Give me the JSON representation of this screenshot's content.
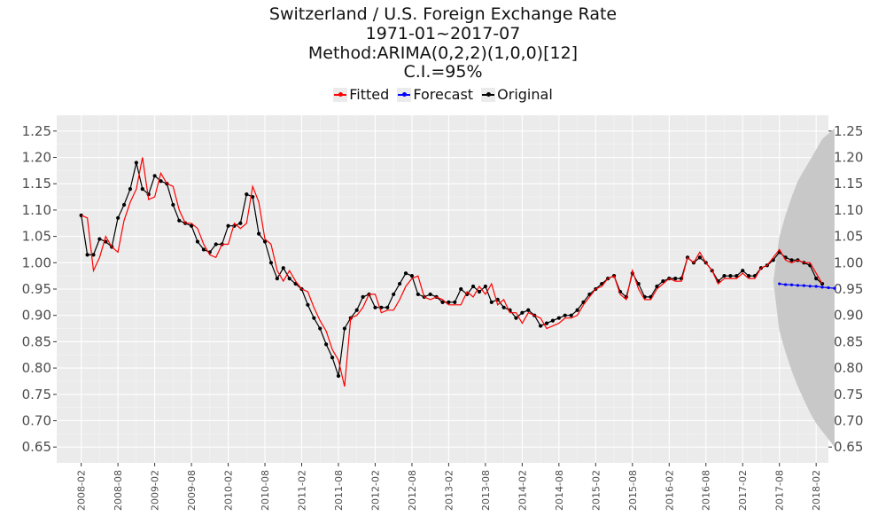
{
  "title": {
    "line1": "Switzerland / U.S. Foreign Exchange Rate",
    "line2": "1971-01~2017-07",
    "line3": "Method:ARIMA(0,2,2)(1,0,0)[12]",
    "line4": "C.I.=95%"
  },
  "legend": {
    "items": [
      {
        "label": "Fitted",
        "color": "#ff0000"
      },
      {
        "label": "Forecast",
        "color": "#0000ff"
      },
      {
        "label": "Original",
        "color": "#000000"
      }
    ]
  },
  "colors": {
    "panel": "#ebebeb",
    "grid_major": "#ffffff",
    "ci_band": "#c8c8c8",
    "fitted": "#ff0000",
    "forecast": "#0000ff",
    "original": "#000000"
  },
  "chart_data": {
    "type": "line",
    "ylim": [
      0.62,
      1.28
    ],
    "xlim": [
      "2007-10",
      "2018-04"
    ],
    "y_ticks": [
      0.65,
      0.7,
      0.75,
      0.8,
      0.85,
      0.9,
      0.95,
      1.0,
      1.05,
      1.1,
      1.15,
      1.2,
      1.25
    ],
    "y_tick_labels": [
      "0.65",
      "0.70",
      "0.75",
      "0.80",
      "0.85",
      "0.90",
      "0.95",
      "1.00",
      "1.05",
      "1.10",
      "1.15",
      "1.20",
      "1.25"
    ],
    "x_ticks": [
      "2008-02",
      "2008-08",
      "2009-02",
      "2009-08",
      "2010-02",
      "2010-08",
      "2011-02",
      "2011-08",
      "2012-02",
      "2012-08",
      "2013-02",
      "2013-08",
      "2014-02",
      "2014-08",
      "2015-02",
      "2015-08",
      "2016-02",
      "2016-08",
      "2017-02",
      "2017-08",
      "2018-02"
    ],
    "secondary_y_axis": true,
    "grid": true,
    "legend_position": "top",
    "start": "2008-02",
    "series": [
      {
        "name": "Original",
        "markers": true,
        "values": [
          1.09,
          1.015,
          1.015,
          1.045,
          1.04,
          1.03,
          1.085,
          1.11,
          1.14,
          1.19,
          1.14,
          1.13,
          1.165,
          1.155,
          1.15,
          1.11,
          1.08,
          1.075,
          1.07,
          1.04,
          1.025,
          1.02,
          1.035,
          1.035,
          1.07,
          1.07,
          1.075,
          1.13,
          1.125,
          1.055,
          1.04,
          1.0,
          0.97,
          0.99,
          0.97,
          0.96,
          0.95,
          0.92,
          0.895,
          0.875,
          0.845,
          0.82,
          0.785,
          0.875,
          0.895,
          0.91,
          0.935,
          0.94,
          0.915,
          0.915,
          0.915,
          0.94,
          0.96,
          0.98,
          0.975,
          0.94,
          0.935,
          0.94,
          0.935,
          0.925,
          0.925,
          0.925,
          0.95,
          0.94,
          0.955,
          0.945,
          0.955,
          0.925,
          0.93,
          0.915,
          0.91,
          0.895,
          0.905,
          0.91,
          0.9,
          0.88,
          0.885,
          0.89,
          0.895,
          0.9,
          0.9,
          0.91,
          0.925,
          0.94,
          0.95,
          0.96,
          0.97,
          0.975,
          0.945,
          0.935,
          0.98,
          0.96,
          0.935,
          0.935,
          0.955,
          0.965,
          0.97,
          0.97,
          0.97,
          1.01,
          1.0,
          1.01,
          1.0,
          0.985,
          0.965,
          0.975,
          0.975,
          0.975,
          0.985,
          0.975,
          0.975,
          0.99,
          0.995,
          1.005,
          1.02,
          1.01,
          1.005,
          1.005,
          1.0,
          0.995,
          0.97,
          0.96
        ]
      },
      {
        "name": "Fitted",
        "markers": false,
        "values": [
          1.09,
          1.085,
          0.985,
          1.01,
          1.05,
          1.03,
          1.02,
          1.08,
          1.115,
          1.14,
          1.2,
          1.12,
          1.125,
          1.17,
          1.15,
          1.145,
          1.1,
          1.075,
          1.075,
          1.065,
          1.035,
          1.015,
          1.01,
          1.035,
          1.035,
          1.075,
          1.065,
          1.075,
          1.145,
          1.115,
          1.045,
          1.035,
          0.985,
          0.965,
          0.985,
          0.965,
          0.95,
          0.945,
          0.915,
          0.89,
          0.87,
          0.835,
          0.815,
          0.765,
          0.895,
          0.9,
          0.915,
          0.94,
          0.94,
          0.905,
          0.91,
          0.91,
          0.93,
          0.955,
          0.97,
          0.975,
          0.935,
          0.93,
          0.935,
          0.93,
          0.92,
          0.92,
          0.92,
          0.945,
          0.935,
          0.955,
          0.94,
          0.96,
          0.92,
          0.93,
          0.905,
          0.905,
          0.885,
          0.905,
          0.9,
          0.895,
          0.875,
          0.88,
          0.885,
          0.895,
          0.895,
          0.9,
          0.92,
          0.935,
          0.95,
          0.955,
          0.97,
          0.975,
          0.94,
          0.93,
          0.985,
          0.95,
          0.93,
          0.93,
          0.95,
          0.96,
          0.97,
          0.965,
          0.965,
          1.01,
          1.0,
          1.02,
          1.0,
          0.985,
          0.96,
          0.97,
          0.97,
          0.97,
          0.98,
          0.97,
          0.97,
          0.99,
          0.995,
          1.01,
          1.025,
          1.005,
          1.0,
          1.005,
          1.0,
          1.0,
          0.98,
          0.96
        ]
      },
      {
        "name": "Forecast",
        "markers": true,
        "start": "2017-08",
        "values": [
          0.96,
          0.9585,
          0.958,
          0.957,
          0.9565,
          0.9555,
          0.955,
          0.9535,
          0.9525,
          0.9515
        ]
      }
    ],
    "confidence_interval": {
      "level": "95%",
      "start": "2017-07",
      "lower": [
        0.965,
        0.87,
        0.83,
        0.795,
        0.765,
        0.74,
        0.715,
        0.695,
        0.68,
        0.665,
        0.65
      ],
      "upper": [
        0.965,
        1.05,
        1.09,
        1.125,
        1.155,
        1.175,
        1.195,
        1.215,
        1.235,
        1.245,
        1.255
      ]
    }
  }
}
